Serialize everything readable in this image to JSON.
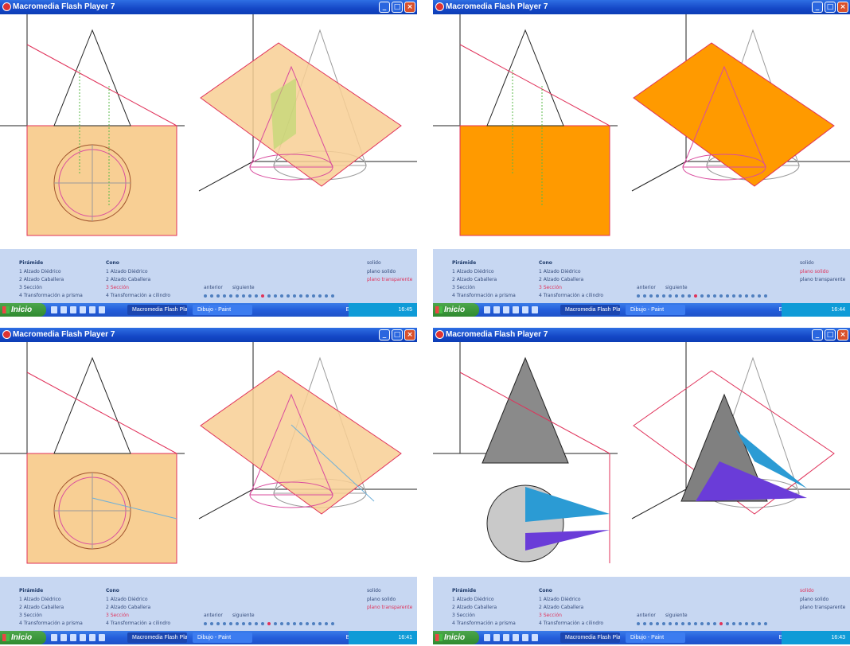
{
  "windows": [
    {
      "title": "Macromedia Flash Player 7",
      "menu": {
        "left_heading": "Pirámide",
        "left_items": [
          "1  Alzado Diédrico",
          "2  Alzado Caballera",
          "3  Sección",
          "4  Transformación a prisma"
        ],
        "mid_heading": "Cono",
        "mid_items": [
          "1  Alzado Diédrico",
          "2  Alzado Caballera",
          "3  Sección",
          "4  Transformación a cilindro"
        ],
        "right_items": [
          "solido",
          "plano solido",
          "plano transparente"
        ],
        "prev_label": "anterior",
        "next_label": "siguiente"
      },
      "taskbar": {
        "start_label": "Inicio",
        "task1": "Macromedia Flash Pla...",
        "task2": "Dibujo - Paint",
        "lang": "ES",
        "time": "16:45"
      },
      "active_dot": 9,
      "active_right_item": 2
    },
    {
      "title": "Macromedia Flash Player 7",
      "menu": {
        "left_heading": "Pirámide",
        "left_items": [
          "1  Alzado Diédrico",
          "2  Alzado Caballera",
          "3  Sección",
          "4  Transformación a prisma"
        ],
        "mid_heading": "Cono",
        "mid_items": [
          "1  Alzado Diédrico",
          "2  Alzado Caballera",
          "3  Sección",
          "4  Transformación a cilindro"
        ],
        "right_items": [
          "solido",
          "plano solido",
          "plano transparente"
        ],
        "prev_label": "anterior",
        "next_label": "siguiente"
      },
      "taskbar": {
        "start_label": "Inicio",
        "task1": "Macromedia Flash Pla...",
        "task2": "Dibujo - Paint",
        "lang": "ES",
        "time": "16:44"
      },
      "active_dot": 9,
      "active_right_item": 1
    },
    {
      "title": "Macromedia Flash Player 7",
      "menu": {
        "left_heading": "Pirámide",
        "left_items": [
          "1  Alzado Diédrico",
          "2  Alzado Caballera",
          "3  Sección",
          "4  Transformación a prisma"
        ],
        "mid_heading": "Cono",
        "mid_items": [
          "1  Alzado Diédrico",
          "2  Alzado Caballera",
          "3  Sección",
          "4  Transformación a cilindro"
        ],
        "right_items": [
          "solido",
          "plano solido",
          "plano transparente"
        ],
        "prev_label": "anterior",
        "next_label": "siguiente"
      },
      "taskbar": {
        "start_label": "Inicio",
        "task1": "Macromedia Flash Pla...",
        "task2": "Dibujo - Paint",
        "lang": "ES",
        "time": "16:41"
      },
      "active_dot": 10,
      "active_right_item": 2
    },
    {
      "title": "Macromedia Flash Player 7",
      "menu": {
        "left_heading": "Pirámide",
        "left_items": [
          "1  Alzado Diédrico",
          "2  Alzado Caballera",
          "3  Sección",
          "4  Transformación a prisma"
        ],
        "mid_heading": "Cono",
        "mid_items": [
          "1  Alzado Diédrico",
          "2  Alzado Caballera",
          "3  Sección",
          "4  Transformación a cilindro"
        ],
        "right_items": [
          "solido",
          "plano solido",
          "plano transparente"
        ],
        "prev_label": "anterior",
        "next_label": "siguiente"
      },
      "taskbar": {
        "start_label": "Inicio",
        "task1": "Macromedia Flash Pla...",
        "task2": "Dibujo - Paint",
        "lang": "ES",
        "time": "16:43"
      },
      "active_dot": 13,
      "active_right_item": 0
    }
  ],
  "colors": {
    "plane_transparent": "#f8cf94",
    "plane_solid": "#ff9a00",
    "section_line": "#e0325a",
    "projection_green": "#58b847",
    "menu_bg": "#c7d7f2",
    "cyan_fill": "#2b9bd4",
    "violet_fill": "#6a3cd8"
  }
}
